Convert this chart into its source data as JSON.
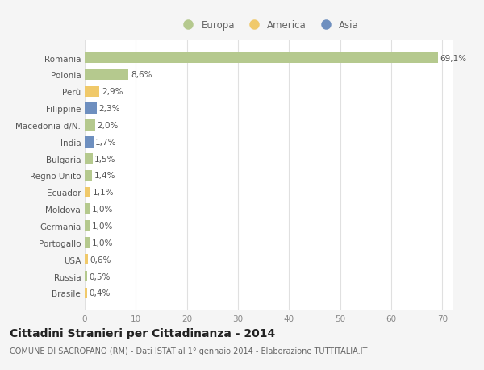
{
  "categories": [
    "Romania",
    "Polonia",
    "Perù",
    "Filippine",
    "Macedonia d/N.",
    "India",
    "Bulgaria",
    "Regno Unito",
    "Ecuador",
    "Moldova",
    "Germania",
    "Portogallo",
    "USA",
    "Russia",
    "Brasile"
  ],
  "values": [
    69.1,
    8.6,
    2.9,
    2.3,
    2.0,
    1.7,
    1.5,
    1.4,
    1.1,
    1.0,
    1.0,
    1.0,
    0.6,
    0.5,
    0.4
  ],
  "labels": [
    "69,1%",
    "8,6%",
    "2,9%",
    "2,3%",
    "2,0%",
    "1,7%",
    "1,5%",
    "1,4%",
    "1,1%",
    "1,0%",
    "1,0%",
    "1,0%",
    "0,6%",
    "0,5%",
    "0,4%"
  ],
  "colors": [
    "#b5c98e",
    "#b5c98e",
    "#f0c96a",
    "#6e8fbf",
    "#b5c98e",
    "#6e8fbf",
    "#b5c98e",
    "#b5c98e",
    "#f0c96a",
    "#b5c98e",
    "#b5c98e",
    "#b5c98e",
    "#f0c96a",
    "#b5c98e",
    "#f0c96a"
  ],
  "legend_labels": [
    "Europa",
    "America",
    "Asia"
  ],
  "legend_colors": [
    "#b5c98e",
    "#f0c96a",
    "#6e8fbf"
  ],
  "title": "Cittadini Stranieri per Cittadinanza - 2014",
  "subtitle": "COMUNE DI SACROFANO (RM) - Dati ISTAT al 1° gennaio 2014 - Elaborazione TUTTITALIA.IT",
  "xlim": [
    0,
    72
  ],
  "xticks": [
    0,
    10,
    20,
    30,
    40,
    50,
    60,
    70
  ],
  "background_color": "#f5f5f5",
  "plot_background": "#ffffff",
  "grid_color": "#e0e0e0",
  "bar_height": 0.65,
  "label_fontsize": 7.5,
  "tick_fontsize": 7.5,
  "ytick_fontsize": 7.5,
  "title_fontsize": 10,
  "subtitle_fontsize": 7,
  "legend_fontsize": 8.5
}
